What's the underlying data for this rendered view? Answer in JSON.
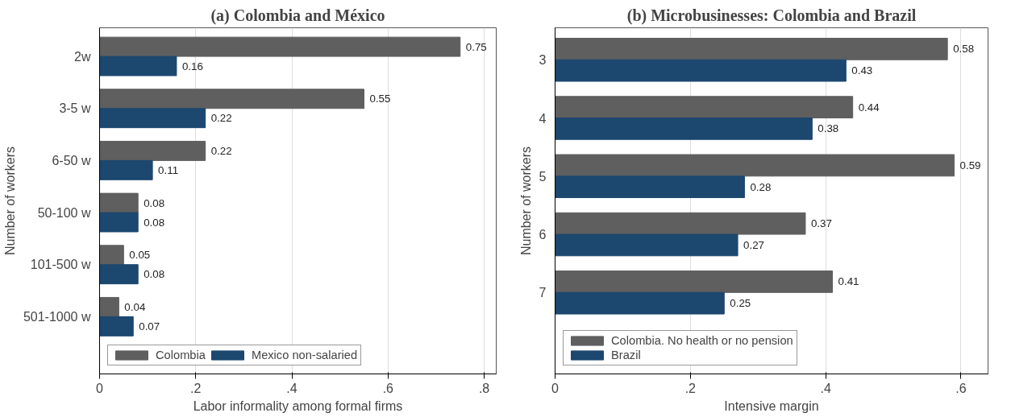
{
  "chart_data": [
    {
      "type": "bar",
      "orientation": "horizontal",
      "title": "(a) Colombia and México",
      "xlabel": "Labor informality among formal firms",
      "ylabel": "Number of workers",
      "categories": [
        "2w",
        "3-5 w",
        "6-50 w",
        "50-100 w",
        "101-500 w",
        "501-1000 w"
      ],
      "series": [
        {
          "name": "Colombia",
          "color": "#5f5f5f",
          "values": [
            0.75,
            0.55,
            0.22,
            0.08,
            0.05,
            0.04
          ]
        },
        {
          "name": "Mexico non-salaried",
          "color": "#1c476f",
          "values": [
            0.16,
            0.22,
            0.11,
            0.08,
            0.08,
            0.07
          ]
        }
      ],
      "xlim": [
        0,
        0.825
      ],
      "xticks": [
        0,
        {
          "value": 0.2,
          "label": ".2"
        },
        {
          "value": 0.4,
          "label": ".4"
        },
        {
          "value": 0.6,
          "label": ".6"
        },
        {
          "value": 0.8,
          "label": ".8"
        }
      ],
      "data_labels": true,
      "grid": "x",
      "legend": "bottom"
    },
    {
      "type": "bar",
      "orientation": "horizontal",
      "title": "(b) Microbusinesses: Colombia and Brazil",
      "xlabel": "Intensive margin",
      "ylabel": "Number of workers",
      "categories": [
        "3",
        "4",
        "5",
        "6",
        "7"
      ],
      "series": [
        {
          "name": "Colombia. No health or no pension",
          "color": "#5f5f5f",
          "values": [
            0.58,
            0.44,
            0.59,
            0.37,
            0.41
          ]
        },
        {
          "name": "Brazil",
          "color": "#1c476f",
          "values": [
            0.43,
            0.38,
            0.28,
            0.27,
            0.25
          ]
        }
      ],
      "xlim": [
        0,
        0.64
      ],
      "xticks": [
        0,
        {
          "value": 0.2,
          "label": ".2"
        },
        {
          "value": 0.4,
          "label": ".4"
        },
        {
          "value": 0.6,
          "label": ".6"
        }
      ],
      "data_labels": true,
      "grid": "x",
      "legend": "bottom"
    }
  ]
}
